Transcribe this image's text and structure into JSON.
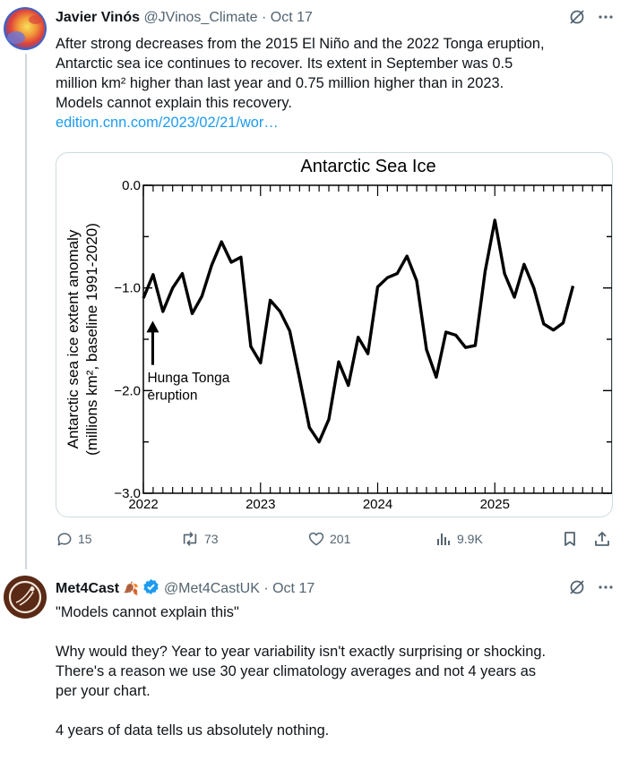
{
  "tweet1": {
    "author_name": "Javier Vinós",
    "author_handle": "@JVinos_Climate",
    "separator": "·",
    "date": "Oct 17",
    "text_lines": [
      "After strong decreases from the 2015 El Niño and the 2022 Tonga eruption,",
      "Antarctic sea ice continues to recover. Its extent in September was 0.5",
      "million km² higher than last year and 0.75 million higher than in 2023.",
      "Models cannot explain this recovery."
    ],
    "link": "edition.cnn.com/2023/02/21/wor…",
    "actions": {
      "replies": "15",
      "reposts": "73",
      "likes": "201",
      "views": "9.9K"
    }
  },
  "tweet2": {
    "author_name": "Met4Cast",
    "emoji_badge": "🍂",
    "author_handle": "@Met4CastUK",
    "separator": "·",
    "date": "Oct 17",
    "text_lines": [
      "\"Models cannot explain this\"",
      "",
      "Why would they? Year to year variability isn't exactly surprising or shocking.",
      "There's a reason we use 30 year climatology averages and not 4 years as",
      "per your chart.",
      "",
      "4 years of data tells us absolutely nothing."
    ]
  },
  "colors": {
    "accent": "#1d9bf0",
    "secondary_text": "#536471",
    "border": "#cfd9de",
    "verified": "#1d9bf0"
  },
  "icons": [
    "grok-icon",
    "more-icon",
    "reply-icon",
    "repost-icon",
    "like-icon",
    "views-icon",
    "bookmark-icon",
    "share-icon",
    "verified-badge-icon"
  ],
  "chart_data": {
    "type": "line",
    "title": "Antarctic Sea Ice",
    "ylabel_line1": "Antarctic sea ice extent anomaly",
    "ylabel_line2": "(millions km², baseline 1991-2020)",
    "xlabel": "",
    "ylim": [
      -3.0,
      0.0
    ],
    "xlim": [
      2022.0,
      2026.0
    ],
    "y_ticks": [
      "0.0",
      "−1.0",
      "−2.0",
      "−3.0"
    ],
    "x_ticks": [
      "2022",
      "2023",
      "2024",
      "2025"
    ],
    "annotation_line1": "Hunga Tonga",
    "annotation_line2": "eruption",
    "annotation_x": 2022.08,
    "grid": false,
    "series": [
      {
        "x": [
          2022.0,
          2022.083,
          2022.167,
          2022.25,
          2022.333,
          2022.417,
          2022.5,
          2022.583,
          2022.667,
          2022.75,
          2022.833,
          2022.917,
          2023.0,
          2023.083,
          2023.167,
          2023.25,
          2023.333,
          2023.417,
          2023.5,
          2023.583,
          2023.667,
          2023.75,
          2023.833,
          2023.917,
          2024.0,
          2024.083,
          2024.167,
          2024.25,
          2024.333,
          2024.417,
          2024.5,
          2024.583,
          2024.667,
          2024.75,
          2024.833,
          2024.917,
          2025.0,
          2025.083,
          2025.167,
          2025.25,
          2025.333,
          2025.417,
          2025.5,
          2025.583,
          2025.667
        ],
        "values": [
          -1.1,
          -0.87,
          -1.23,
          -1.0,
          -0.86,
          -1.25,
          -1.08,
          -0.78,
          -0.55,
          -0.75,
          -0.7,
          -1.57,
          -1.73,
          -1.12,
          -1.23,
          -1.42,
          -1.88,
          -2.36,
          -2.5,
          -2.28,
          -1.72,
          -1.95,
          -1.48,
          -1.64,
          -0.99,
          -0.9,
          -0.86,
          -0.69,
          -0.93,
          -1.6,
          -1.87,
          -1.43,
          -1.46,
          -1.58,
          -1.56,
          -0.84,
          -0.34,
          -0.86,
          -1.09,
          -0.77,
          -1.0,
          -1.35,
          -1.41,
          -1.34,
          -0.98
        ]
      }
    ]
  }
}
